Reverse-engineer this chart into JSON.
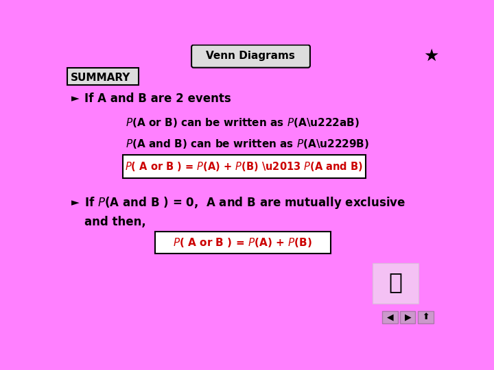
{
  "bg_color": "#FF80FF",
  "title": "Venn Diagrams",
  "summary_label": "SUMMARY",
  "bullet1": "If A and B are 2 events",
  "box1_formula": "P( A or B ) = P(A) + P(B) – P(A and B)",
  "bullet2_line1a": "If ",
  "bullet2_line1b": "P(A and B ) = 0,",
  "bullet2_line1c": "  A and B are mutually exclusive",
  "bullet2_line2": "and then,",
  "box2_formula": "P( A or B ) = P(A) + P(B)",
  "text_black": "#000000",
  "text_red": "#CC0000",
  "box_fill_white": "#FFFFFF",
  "box_fill_gray": "#DDDDDD",
  "box_edge": "#000000",
  "nav_fill": "#CC99CC",
  "nav_edge": "#AA77AA"
}
